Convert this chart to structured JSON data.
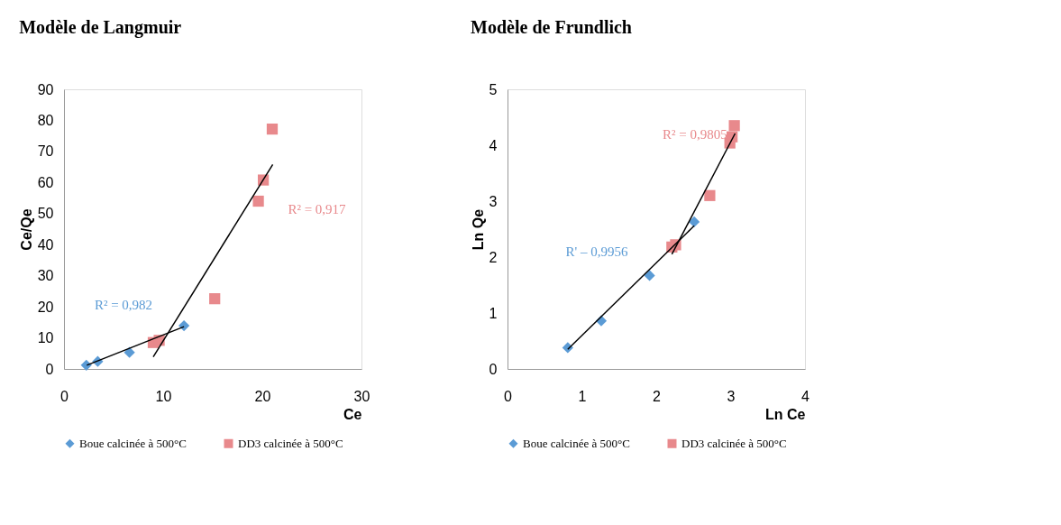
{
  "chart_data": [
    {
      "type": "scatter",
      "title": "Modèle de Langmuir",
      "xlabel": "Ce",
      "ylabel": "Ce/Qe",
      "xlim": [
        0,
        30
      ],
      "xticks": [
        0,
        10,
        20,
        30
      ],
      "ylim": [
        0,
        90
      ],
      "yticks": [
        0,
        10,
        20,
        30,
        40,
        50,
        60,
        70,
        80,
        90
      ],
      "grid": false,
      "legend": "bottom",
      "series": [
        {
          "name": "Boue calcinée à 500°C",
          "color": "#5b9bd5",
          "marker": "diamond",
          "x": [
            2.25,
            3.4,
            6.6,
            12.1
          ],
          "values": [
            1.2,
            2.4,
            5.3,
            13.9
          ]
        },
        {
          "name": "DD3 calcinée à 500°C",
          "color": "#e8898c",
          "marker": "square",
          "x": [
            9.0,
            9.6,
            15.2,
            19.6,
            20.1,
            21.0
          ],
          "values": [
            8.5,
            9.2,
            22.6,
            54,
            60.8,
            77.2
          ]
        },
        {
          "type": "line",
          "color": "#000000",
          "x": [
            2.3,
            12.1
          ],
          "values": [
            1.2,
            13.6
          ]
        },
        {
          "type": "line",
          "color": "#000000",
          "x": [
            9.0,
            21.05
          ],
          "values": [
            3.9,
            65.8
          ]
        }
      ],
      "annotations": [
        "R² = 0,982",
        "R² = 0,917"
      ]
    },
    {
      "type": "scatter",
      "title": "Modèle de Frundlich",
      "xlabel": "Ln Ce",
      "ylabel": "Ln Qe",
      "xlim": [
        0,
        4
      ],
      "xticks": [
        0,
        1,
        2,
        3,
        4
      ],
      "ylim": [
        0,
        5
      ],
      "yticks": [
        0,
        1,
        2,
        3,
        4,
        5
      ],
      "grid": false,
      "legend": "bottom",
      "series": [
        {
          "name": "Boue calcinée à 500°C",
          "color": "#5b9bd5",
          "marker": "diamond",
          "x": [
            0.81,
            1.26,
            1.91,
            2.51
          ],
          "values": [
            0.38,
            0.86,
            1.67,
            2.63
          ]
        },
        {
          "name": "DD3 calcinée à 500°C",
          "color": "#e8898c",
          "marker": "square",
          "x": [
            2.21,
            2.26,
            2.72,
            2.99,
            3.02,
            3.05
          ],
          "values": [
            2.18,
            2.22,
            3.1,
            4.04,
            4.15,
            4.35
          ]
        },
        {
          "type": "line",
          "color": "#000000",
          "x": [
            0.81,
            2.51
          ],
          "values": [
            0.35,
            2.56
          ]
        },
        {
          "type": "line",
          "color": "#000000",
          "x": [
            2.21,
            3.06
          ],
          "values": [
            2.05,
            4.21
          ]
        }
      ],
      "annotations": [
        "R' – 0,9956",
        "R² = 0,9805"
      ]
    }
  ]
}
